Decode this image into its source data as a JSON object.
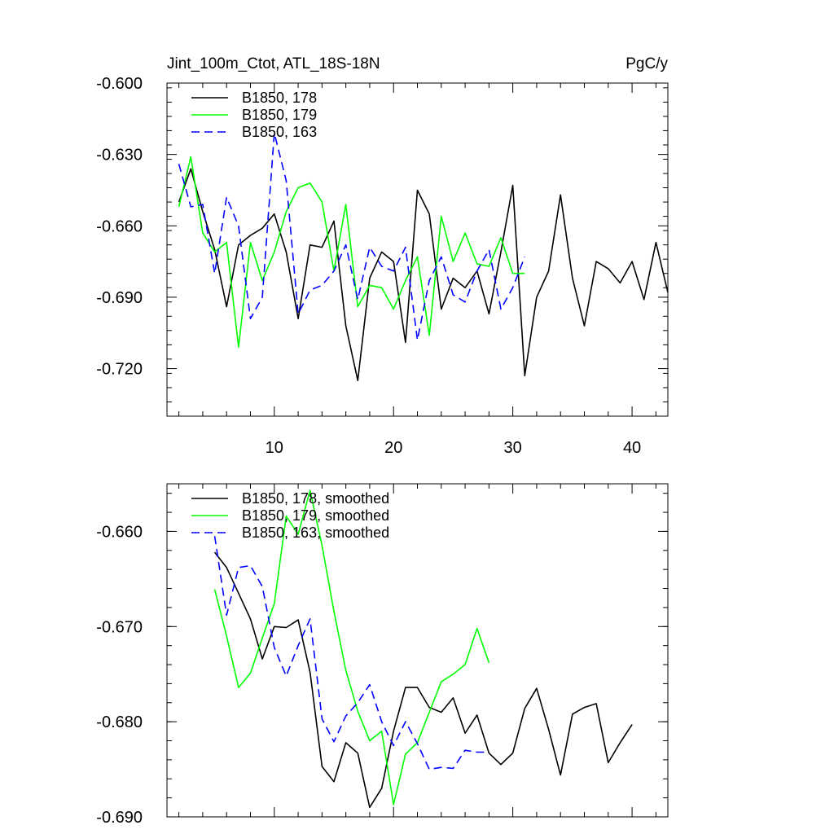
{
  "chart_data": [
    {
      "type": "line",
      "title": "Jint_100m_Ctot, ATL_18S-18N",
      "units": "PgC/y",
      "xlim": [
        1,
        43
      ],
      "ylim": [
        -0.74,
        -0.6
      ],
      "xticks": [
        10,
        20,
        30,
        40
      ],
      "xtick_labels": [
        "10",
        "20",
        "30",
        "40"
      ],
      "yticks": [
        -0.6,
        -0.63,
        -0.66,
        -0.69,
        -0.72
      ],
      "ytick_labels": [
        "-0.600",
        "-0.630",
        "-0.660",
        "-0.690",
        "-0.720"
      ],
      "legend_position": "top-left",
      "series": [
        {
          "name": "B1850, 178",
          "color": "#000000",
          "dash": "solid",
          "x": [
            2,
            3,
            4,
            5,
            6,
            7,
            8,
            9,
            10,
            11,
            12,
            13,
            14,
            15,
            16,
            17,
            18,
            19,
            20,
            21,
            22,
            23,
            24,
            25,
            26,
            27,
            28,
            29,
            30,
            31,
            32,
            33,
            34,
            35,
            36,
            37,
            38,
            39,
            40,
            41,
            42,
            43
          ],
          "values": [
            -0.65,
            -0.636,
            -0.654,
            -0.67,
            -0.694,
            -0.668,
            -0.664,
            -0.661,
            -0.655,
            -0.671,
            -0.699,
            -0.668,
            -0.669,
            -0.658,
            -0.702,
            -0.725,
            -0.682,
            -0.671,
            -0.675,
            -0.709,
            -0.645,
            -0.655,
            -0.695,
            -0.682,
            -0.686,
            -0.679,
            -0.697,
            -0.671,
            -0.643,
            -0.723,
            -0.69,
            -0.679,
            -0.647,
            -0.682,
            -0.702,
            -0.675,
            -0.678,
            -0.684,
            -0.675,
            -0.691,
            -0.667,
            -0.688
          ]
        },
        {
          "name": "B1850, 179",
          "color": "#00ff00",
          "dash": "solid",
          "x": [
            2,
            3,
            4,
            5,
            6,
            7,
            8,
            9,
            10,
            11,
            12,
            13,
            14,
            15,
            16,
            17,
            18,
            19,
            20,
            21,
            22,
            23,
            24,
            25,
            26,
            27,
            28,
            29,
            30,
            31
          ],
          "values": [
            -0.652,
            -0.631,
            -0.663,
            -0.671,
            -0.667,
            -0.711,
            -0.667,
            -0.683,
            -0.671,
            -0.654,
            -0.644,
            -0.642,
            -0.65,
            -0.679,
            -0.651,
            -0.694,
            -0.685,
            -0.686,
            -0.695,
            -0.683,
            -0.673,
            -0.706,
            -0.656,
            -0.675,
            -0.663,
            -0.676,
            -0.677,
            -0.665,
            -0.68,
            -0.68
          ]
        },
        {
          "name": "B1850, 163",
          "color": "#0000ff",
          "dash": "dashed",
          "x": [
            2,
            3,
            4,
            5,
            6,
            7,
            8,
            9,
            10,
            11,
            12,
            13,
            14,
            15,
            16,
            17,
            18,
            19,
            20,
            21,
            22,
            23,
            24,
            25,
            26,
            27,
            28,
            29,
            30,
            31
          ],
          "values": [
            -0.634,
            -0.652,
            -0.651,
            -0.68,
            -0.648,
            -0.66,
            -0.699,
            -0.69,
            -0.621,
            -0.641,
            -0.697,
            -0.687,
            -0.685,
            -0.679,
            -0.668,
            -0.691,
            -0.669,
            -0.677,
            -0.679,
            -0.669,
            -0.708,
            -0.683,
            -0.673,
            -0.689,
            -0.692,
            -0.679,
            -0.67,
            -0.695,
            -0.686,
            -0.673
          ]
        }
      ]
    },
    {
      "type": "line",
      "xlim": [
        1,
        43
      ],
      "ylim": [
        -0.69,
        -0.655
      ],
      "xticks": [
        10,
        20,
        30,
        40
      ],
      "yticks": [
        -0.66,
        -0.67,
        -0.68,
        -0.69
      ],
      "ytick_labels": [
        "-0.660",
        "-0.670",
        "-0.680",
        "-0.690"
      ],
      "legend_position": "top-left",
      "series": [
        {
          "name": "B1850, 178, smoothed",
          "color": "#000000",
          "dash": "solid",
          "x": [
            5,
            6,
            7,
            8,
            9,
            10,
            11,
            12,
            13,
            14,
            15,
            16,
            17,
            18,
            19,
            20,
            21,
            22,
            23,
            24,
            25,
            26,
            27,
            28,
            29,
            30,
            31,
            32,
            33,
            34,
            35,
            36,
            37,
            38,
            39,
            40
          ],
          "values": [
            -0.6622,
            -0.6638,
            -0.6665,
            -0.6692,
            -0.6734,
            -0.67,
            -0.6701,
            -0.6693,
            -0.6748,
            -0.6847,
            -0.6863,
            -0.6822,
            -0.6833,
            -0.689,
            -0.687,
            -0.681,
            -0.6764,
            -0.6764,
            -0.6785,
            -0.679,
            -0.6775,
            -0.6812,
            -0.6793,
            -0.6833,
            -0.6845,
            -0.6833,
            -0.6786,
            -0.6765,
            -0.6808,
            -0.6856,
            -0.6792,
            -0.6785,
            -0.6781,
            -0.6843,
            -0.6822,
            -0.6803
          ]
        },
        {
          "name": "B1850, 179, smoothed",
          "color": "#00ff00",
          "dash": "solid",
          "x": [
            5,
            6,
            7,
            8,
            9,
            10,
            11,
            12,
            13,
            14,
            15,
            16,
            17,
            18,
            19,
            20,
            21,
            22,
            23,
            24,
            25,
            26,
            27,
            28
          ],
          "values": [
            -0.6661,
            -0.671,
            -0.6764,
            -0.6749,
            -0.6712,
            -0.6676,
            -0.6584,
            -0.6603,
            -0.6557,
            -0.6615,
            -0.6684,
            -0.6746,
            -0.6789,
            -0.682,
            -0.681,
            -0.6887,
            -0.6834,
            -0.6822,
            -0.679,
            -0.6758,
            -0.675,
            -0.674,
            -0.6702,
            -0.6738
          ]
        },
        {
          "name": "B1850, 163, smoothed",
          "color": "#0000ff",
          "dash": "dashed",
          "x": [
            5,
            6,
            7,
            8,
            9,
            10,
            11,
            12,
            13,
            14,
            15,
            16,
            17,
            18,
            19,
            20,
            21,
            22,
            23,
            24,
            25,
            26,
            27,
            28
          ],
          "values": [
            -0.6605,
            -0.6688,
            -0.6638,
            -0.6636,
            -0.6658,
            -0.6722,
            -0.6752,
            -0.672,
            -0.6692,
            -0.6797,
            -0.6821,
            -0.6794,
            -0.678,
            -0.6761,
            -0.68,
            -0.6825,
            -0.68,
            -0.6823,
            -0.685,
            -0.6848,
            -0.6849,
            -0.683,
            -0.6832,
            -0.6832
          ]
        }
      ]
    }
  ]
}
